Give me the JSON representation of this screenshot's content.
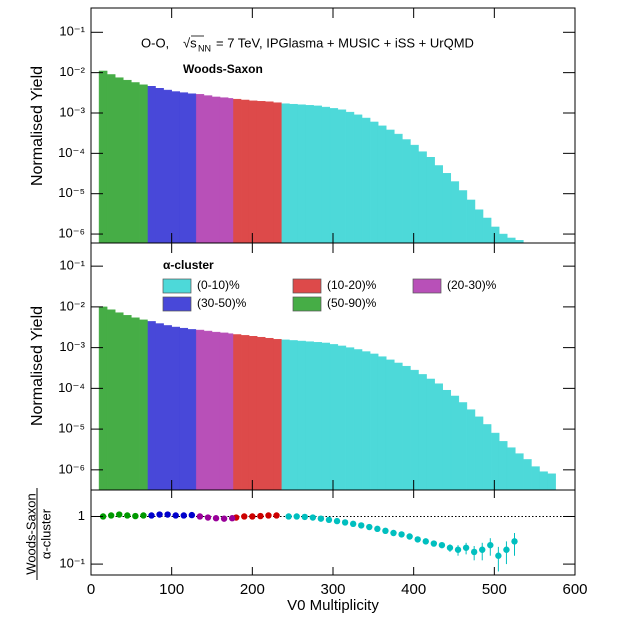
{
  "chart_data": [
    {
      "type": "histogram",
      "log_y": true,
      "annotation": "O-O,",
      "energy_label": "√s",
      "energy_sub": "NN",
      "energy_rest": "= 7 TeV, IPGlasma + MUSIC + iSS + UrQMD",
      "subtitle": "Woods-Saxon",
      "ylabel": "Normalised Yield",
      "xlim": [
        0,
        600
      ],
      "ylim": [
        6e-07,
        0.4
      ],
      "yticks": [
        {
          "value": 1e-06,
          "label": "10⁻⁶"
        },
        {
          "value": 1e-05,
          "label": "10⁻⁵"
        },
        {
          "value": 0.0001,
          "label": "10⁻⁴"
        },
        {
          "value": 0.001,
          "label": "10⁻³"
        },
        {
          "value": 0.01,
          "label": "10⁻²"
        },
        {
          "value": 0.1,
          "label": "10⁻¹"
        }
      ],
      "series": [
        {
          "color": "#4dd9d9",
          "bins": [
            236,
            246,
            256,
            266,
            276,
            286,
            296,
            306,
            316,
            326,
            336,
            346,
            356,
            366,
            376,
            386,
            396,
            406,
            416,
            426,
            436,
            446,
            456,
            466,
            476,
            486,
            496,
            506,
            516,
            526,
            536
          ],
          "values": [
            0.0017,
            0.00165,
            0.0016,
            0.00155,
            0.0015,
            0.0014,
            0.0013,
            0.0012,
            0.00105,
            0.0009,
            0.00075,
            0.0006,
            0.00048,
            0.00038,
            0.0003,
            0.00022,
            0.00016,
            0.00011,
            8e-05,
            5e-05,
            3.2e-05,
            2e-05,
            1.2e-05,
            7e-06,
            4e-06,
            2.5e-06,
            1.5e-06,
            1e-06,
            8e-07,
            7e-07
          ]
        },
        {
          "color": "#dd4a4a",
          "bins": [
            176,
            186,
            196,
            206,
            216,
            226,
            236
          ],
          "values": [
            0.0022,
            0.0021,
            0.002,
            0.00195,
            0.0019,
            0.0018
          ]
        },
        {
          "color": "#b850b8",
          "bins": [
            130,
            140,
            150,
            160,
            170,
            176
          ],
          "values": [
            0.0029,
            0.0027,
            0.0025,
            0.0024,
            0.0023
          ]
        },
        {
          "color": "#4848d9",
          "bins": [
            70,
            80,
            90,
            100,
            110,
            120,
            130
          ],
          "values": [
            0.0046,
            0.0041,
            0.0037,
            0.0034,
            0.0032,
            0.003
          ]
        },
        {
          "color": "#46ad46",
          "bins": [
            10,
            20,
            30,
            40,
            50,
            60,
            70
          ],
          "values": [
            0.011,
            0.009,
            0.0075,
            0.0065,
            0.0057,
            0.005
          ]
        }
      ]
    },
    {
      "type": "histogram",
      "log_y": true,
      "ylabel": "Normalised Yield",
      "legend_title": "α-cluster",
      "xlim": [
        0,
        600
      ],
      "ylim": [
        3.2e-07,
        0.37
      ],
      "yticks": [
        {
          "value": 1e-06,
          "label": "10⁻⁶"
        },
        {
          "value": 1e-05,
          "label": "10⁻⁵"
        },
        {
          "value": 0.0001,
          "label": "10⁻⁴"
        },
        {
          "value": 0.001,
          "label": "10⁻³"
        },
        {
          "value": 0.01,
          "label": "10⁻²"
        },
        {
          "value": 0.1,
          "label": "10⁻¹"
        }
      ],
      "series": [
        {
          "name": "(0-10)%",
          "color": "#4dd9d9",
          "bins": [
            236,
            246,
            256,
            266,
            276,
            286,
            296,
            306,
            316,
            326,
            336,
            346,
            356,
            366,
            376,
            386,
            396,
            406,
            416,
            426,
            436,
            446,
            456,
            466,
            476,
            486,
            496,
            506,
            516,
            526,
            536,
            546,
            556,
            566,
            576
          ],
          "values": [
            0.00155,
            0.0015,
            0.00145,
            0.0014,
            0.00135,
            0.0013,
            0.0012,
            0.0011,
            0.001,
            0.0009,
            0.0008,
            0.0007,
            0.0006,
            0.0005,
            0.00042,
            0.00035,
            0.00028,
            0.00022,
            0.00017,
            0.00013,
            9e-05,
            6.5e-05,
            4.5e-05,
            3e-05,
            2e-05,
            1.3e-05,
            8e-06,
            5e-06,
            3.5e-06,
            2.5e-06,
            1.8e-06,
            1.2e-06,
            9e-07,
            8e-07
          ]
        },
        {
          "name": "(10-20)%",
          "color": "#dd4a4a",
          "bins": [
            176,
            186,
            196,
            206,
            216,
            226,
            236
          ],
          "values": [
            0.0021,
            0.002,
            0.0019,
            0.0018,
            0.0017,
            0.0016
          ]
        },
        {
          "name": "(20-30)%",
          "color": "#b850b8",
          "bins": [
            130,
            140,
            150,
            160,
            170,
            176
          ],
          "values": [
            0.0027,
            0.00255,
            0.0024,
            0.0023,
            0.0022
          ]
        },
        {
          "name": "(30-50)%",
          "color": "#4848d9",
          "bins": [
            70,
            80,
            90,
            100,
            110,
            120,
            130
          ],
          "values": [
            0.0044,
            0.0039,
            0.0035,
            0.0032,
            0.003,
            0.0028
          ]
        },
        {
          "name": "(50-90)%",
          "color": "#46ad46",
          "bins": [
            10,
            20,
            30,
            40,
            50,
            60,
            70
          ],
          "values": [
            0.01,
            0.0085,
            0.0072,
            0.0062,
            0.0054,
            0.0048
          ]
        }
      ]
    },
    {
      "type": "scatter",
      "log_y": true,
      "ylabel_top": "Woods-Saxon",
      "ylabel_bottom": "α-cluster",
      "xlabel": "V0 Multiplicity",
      "xlim": [
        0,
        600
      ],
      "xticks": [
        0,
        100,
        200,
        300,
        400,
        500,
        600
      ],
      "ylim": [
        0.059,
        3.6
      ],
      "yticks": [
        {
          "value": 0.1,
          "label": "10⁻¹"
        },
        1
      ],
      "hline": 1,
      "series": [
        {
          "color": "#00bfbf",
          "x": [
            245,
            255,
            265,
            275,
            285,
            295,
            305,
            315,
            325,
            335,
            345,
            355,
            365,
            375,
            385,
            395,
            405,
            415,
            425,
            435,
            445,
            455,
            465,
            475,
            485,
            495,
            505,
            515,
            525
          ],
          "values": [
            1.0,
            1.0,
            0.98,
            0.95,
            0.9,
            0.85,
            0.8,
            0.75,
            0.7,
            0.65,
            0.6,
            0.55,
            0.5,
            0.45,
            0.42,
            0.38,
            0.33,
            0.3,
            0.27,
            0.25,
            0.22,
            0.2,
            0.22,
            0.18,
            0.2,
            0.25,
            0.15,
            0.2,
            0.3
          ],
          "errors": [
            null,
            null,
            null,
            null,
            null,
            null,
            null,
            null,
            null,
            null,
            null,
            null,
            null,
            null,
            null,
            null,
            null,
            null,
            null,
            null,
            0.04,
            0.05,
            0.06,
            0.06,
            0.08,
            0.1,
            0.08,
            0.1,
            0.15
          ]
        },
        {
          "color": "#cc0000",
          "x": [
            180,
            190,
            200,
            210,
            220,
            230
          ],
          "values": [
            0.95,
            1.0,
            1.0,
            1.02,
            1.05,
            1.05
          ]
        },
        {
          "color": "#990099",
          "x": [
            135,
            145,
            155,
            165,
            175
          ],
          "values": [
            1.0,
            0.95,
            0.92,
            0.9,
            0.92
          ]
        },
        {
          "color": "#0000cc",
          "x": [
            75,
            85,
            95,
            105,
            115,
            125
          ],
          "values": [
            1.05,
            1.1,
            1.1,
            1.05,
            1.05,
            1.07
          ]
        },
        {
          "color": "#009900",
          "x": [
            15,
            25,
            35,
            45,
            55,
            65
          ],
          "values": [
            1.0,
            1.05,
            1.1,
            1.05,
            1.02,
            1.05
          ]
        }
      ]
    }
  ]
}
